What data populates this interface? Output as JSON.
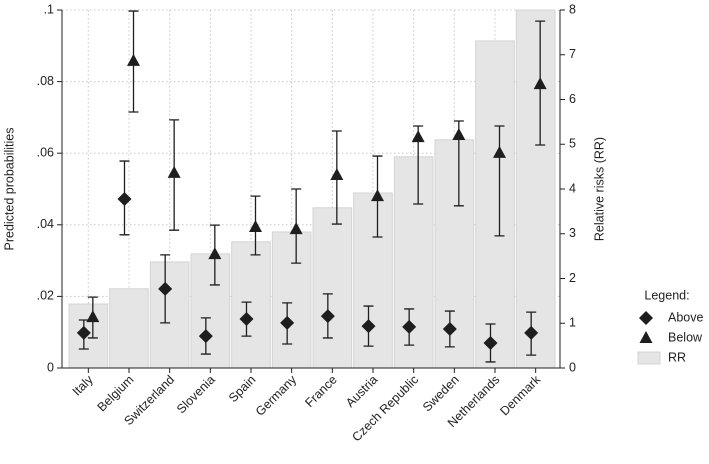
{
  "chart_data": {
    "type": "combo",
    "y_label": "Predicted probabilities",
    "y2_label": "Relative risks (RR)",
    "legend_title": "Legend:",
    "legend": "right",
    "grid": true,
    "categories": [
      "Italy",
      "Belgium",
      "Switzerland",
      "Slovenia",
      "Spain",
      "Germany",
      "France",
      "Austria",
      "Czech Republic",
      "Sweden",
      "Netherlands",
      "Denmark"
    ],
    "ylim": [
      0,
      0.1
    ],
    "yticks": [
      0,
      {
        "value": 0.02,
        "label": ".02"
      },
      {
        "value": 0.04,
        "label": ".04"
      },
      {
        "value": 0.06,
        "label": ".06"
      },
      {
        "value": 0.08,
        "label": ".08"
      },
      {
        "value": 0.1,
        "label": ".1"
      }
    ],
    "y2lim": [
      0,
      8
    ],
    "y2ticks": [
      0,
      1,
      2,
      3,
      4,
      5,
      6,
      7,
      8
    ],
    "series": [
      {
        "name": "RR",
        "type": "bar",
        "axis": "y2",
        "color": "#e5e5e5",
        "values": [
          1.43,
          1.77,
          2.37,
          2.55,
          2.82,
          3.04,
          3.58,
          3.91,
          4.72,
          5.1,
          7.31,
          8.0
        ]
      },
      {
        "name": "Above",
        "type": "scatter",
        "marker": "diamond",
        "color": "#1e1e1e",
        "values": [
          0.0098,
          0.0472,
          0.0221,
          0.0089,
          0.0137,
          0.0126,
          0.0145,
          0.0117,
          0.0115,
          0.0109,
          0.007,
          0.0098
        ],
        "low": [
          0.0053,
          0.0372,
          0.0126,
          0.0039,
          0.0089,
          0.0067,
          0.0084,
          0.0061,
          0.0064,
          0.0059,
          0.0017,
          0.0036
        ],
        "high": [
          0.0134,
          0.0578,
          0.0316,
          0.014,
          0.0184,
          0.0182,
          0.0207,
          0.0173,
          0.0165,
          0.0159,
          0.0123,
          0.0156
        ]
      },
      {
        "name": "Below",
        "type": "scatter",
        "marker": "triangle",
        "color": "#1e1e1e",
        "values": [
          0.0142,
          0.0858,
          0.0545,
          0.0318,
          0.0394,
          0.0388,
          0.0539,
          0.048,
          0.0645,
          0.0651,
          0.0601,
          0.0793
        ],
        "low": [
          0.0084,
          0.0715,
          0.0385,
          0.0232,
          0.0316,
          0.0293,
          0.0402,
          0.0366,
          0.0458,
          0.0453,
          0.0369,
          0.0623
        ],
        "high": [
          0.0198,
          0.0997,
          0.0693,
          0.0399,
          0.048,
          0.05,
          0.0662,
          0.0592,
          0.0676,
          0.069,
          0.0676,
          0.0969
        ]
      }
    ]
  }
}
